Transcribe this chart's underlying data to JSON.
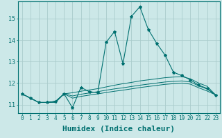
{
  "xlabel": "Humidex (Indice chaleur)",
  "ylabel": "",
  "background_color": "#cce8e8",
  "grid_color": "#aacccc",
  "line_color": "#007070",
  "x": [
    0,
    1,
    2,
    3,
    4,
    5,
    6,
    7,
    8,
    9,
    10,
    11,
    12,
    13,
    14,
    15,
    16,
    17,
    18,
    19,
    20,
    21,
    22,
    23
  ],
  "series1": [
    11.5,
    11.3,
    11.1,
    11.1,
    11.15,
    11.5,
    10.85,
    11.8,
    11.6,
    11.55,
    13.9,
    14.4,
    12.9,
    15.1,
    15.55,
    14.5,
    13.85,
    13.3,
    12.5,
    12.35,
    12.15,
    11.9,
    11.75,
    11.45
  ],
  "series2": [
    11.5,
    11.3,
    11.1,
    11.1,
    11.15,
    11.5,
    11.55,
    11.62,
    11.68,
    11.74,
    11.82,
    11.9,
    11.97,
    12.03,
    12.1,
    12.15,
    12.2,
    12.25,
    12.28,
    12.3,
    12.2,
    12.0,
    11.85,
    11.45
  ],
  "series3": [
    11.5,
    11.3,
    11.1,
    11.1,
    11.15,
    11.5,
    11.4,
    11.48,
    11.54,
    11.6,
    11.67,
    11.73,
    11.78,
    11.84,
    11.9,
    11.95,
    12.0,
    12.05,
    12.08,
    12.1,
    12.05,
    11.87,
    11.72,
    11.45
  ],
  "series4": [
    11.5,
    11.3,
    11.1,
    11.1,
    11.1,
    11.5,
    11.3,
    11.38,
    11.44,
    11.5,
    11.56,
    11.62,
    11.67,
    11.73,
    11.79,
    11.84,
    11.89,
    11.94,
    11.97,
    12.0,
    11.95,
    11.78,
    11.63,
    11.45
  ],
  "ylim": [
    10.6,
    15.8
  ],
  "xlim": [
    -0.5,
    23.5
  ],
  "yticks": [
    11,
    12,
    13,
    14,
    15
  ],
  "xticks": [
    0,
    1,
    2,
    3,
    4,
    5,
    6,
    7,
    8,
    9,
    10,
    11,
    12,
    13,
    14,
    15,
    16,
    17,
    18,
    19,
    20,
    21,
    22,
    23
  ],
  "fontsize": 7,
  "xlabel_fontsize": 8
}
